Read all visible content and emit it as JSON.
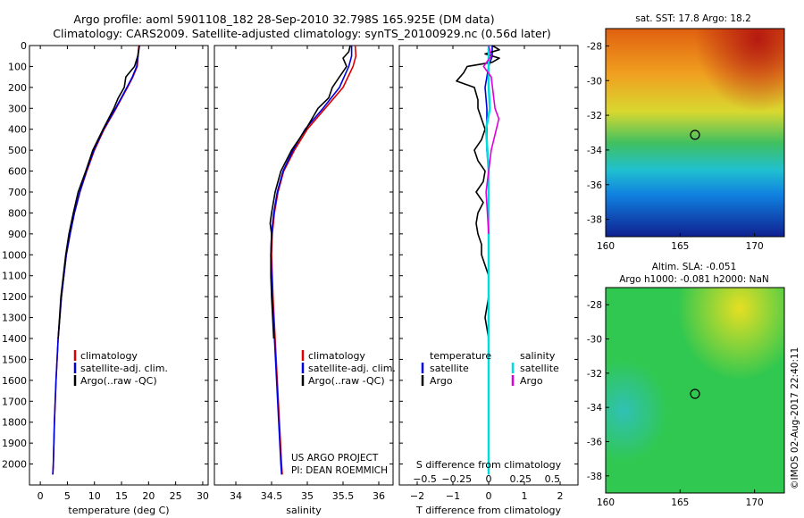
{
  "header": {
    "title_line1": "Argo profile: aoml 5901108_182 28-Sep-2010 32.798S 165.925E (DM data)",
    "title_line2": "Climatology: CARS2009. Satellite-adjusted climatology: synTS_20100929.nc (0.56d later)"
  },
  "chart_data": [
    {
      "type": "line",
      "id": "temperature",
      "xlabel": "temperature (deg C)",
      "ylabel": "",
      "xlim": [
        -2,
        31
      ],
      "ylim": [
        2100,
        0
      ],
      "xticks": [
        0,
        5,
        10,
        15,
        20,
        25,
        30
      ],
      "yticks": [
        0,
        100,
        200,
        300,
        400,
        500,
        600,
        700,
        800,
        900,
        1000,
        1100,
        1200,
        1300,
        1400,
        1500,
        1600,
        1700,
        1800,
        1900,
        2000
      ],
      "legend": [
        "climatology",
        "satellite-adj. clim.",
        "Argo(..raw -QC)"
      ],
      "series": [
        {
          "name": "climatology",
          "color": "#dd0000",
          "depth": [
            0,
            100,
            150,
            200,
            300,
            400,
            500,
            600,
            700,
            800,
            900,
            1000,
            1200,
            1400,
            1600,
            1800,
            2000,
            2050
          ],
          "values": [
            18.2,
            17.9,
            17.1,
            16.1,
            14.0,
            11.8,
            10.0,
            8.6,
            7.3,
            6.3,
            5.5,
            4.8,
            3.9,
            3.3,
            2.9,
            2.6,
            2.4,
            2.3
          ]
        },
        {
          "name": "satellite-adj. clim.",
          "color": "#0000dd",
          "depth": [
            0,
            100,
            150,
            200,
            300,
            400,
            500,
            600,
            700,
            800,
            900,
            1000,
            1200,
            1400,
            1600,
            1800,
            2000,
            2050
          ],
          "values": [
            18.3,
            17.8,
            17.0,
            16.0,
            13.9,
            11.7,
            9.9,
            8.5,
            7.3,
            6.3,
            5.5,
            4.8,
            3.9,
            3.3,
            2.9,
            2.6,
            2.4,
            2.3
          ]
        },
        {
          "name": "Argo(..raw -QC)",
          "color": "#000000",
          "depth": [
            0,
            50,
            100,
            150,
            200,
            250,
            300,
            400,
            500,
            600,
            700,
            800,
            900,
            1000,
            1200,
            1400
          ],
          "values": [
            18.3,
            18.0,
            17.4,
            15.8,
            15.5,
            14.4,
            13.6,
            11.6,
            9.7,
            8.4,
            7.0,
            6.1,
            5.3,
            4.7,
            3.8,
            3.3
          ]
        }
      ]
    },
    {
      "type": "line",
      "id": "salinity",
      "xlabel": "salinity",
      "ylabel": "",
      "xlim": [
        33.7,
        36.2
      ],
      "ylim": [
        2100,
        0
      ],
      "xticks": [
        34,
        34.5,
        35,
        35.5,
        36
      ],
      "legend": [
        "climatology",
        "satellite-adj. clim.",
        "Argo(..raw -QC)"
      ],
      "series": [
        {
          "name": "climatology",
          "color": "#dd0000",
          "depth": [
            0,
            50,
            100,
            200,
            300,
            400,
            500,
            600,
            700,
            800,
            900,
            1000,
            1200,
            1400,
            1600,
            1800,
            2000,
            2050
          ],
          "values": [
            35.67,
            35.68,
            35.64,
            35.5,
            35.25,
            35.0,
            34.82,
            34.67,
            34.59,
            34.54,
            34.51,
            34.5,
            34.52,
            34.55,
            34.58,
            34.61,
            34.64,
            34.65
          ]
        },
        {
          "name": "satellite-adj. clim.",
          "color": "#0000dd",
          "depth": [
            0,
            50,
            100,
            200,
            300,
            400,
            500,
            600,
            700,
            800,
            900,
            1000,
            1200,
            1400,
            1600,
            1800,
            2000,
            2050
          ],
          "values": [
            35.62,
            35.62,
            35.58,
            35.45,
            35.22,
            34.97,
            34.8,
            34.66,
            34.58,
            34.53,
            34.5,
            34.49,
            34.51,
            34.54,
            34.57,
            34.6,
            34.63,
            34.64
          ]
        },
        {
          "name": "Argo(..raw -QC)",
          "color": "#000000",
          "depth": [
            0,
            30,
            60,
            100,
            150,
            200,
            250,
            300,
            400,
            500,
            600,
            700,
            800,
            850,
            900,
            1000,
            1100,
            1200,
            1400
          ],
          "values": [
            35.6,
            35.58,
            35.5,
            35.55,
            35.45,
            35.35,
            35.3,
            35.15,
            34.98,
            34.78,
            34.63,
            34.55,
            34.5,
            34.48,
            34.5,
            34.49,
            34.49,
            34.5,
            34.53
          ]
        }
      ]
    },
    {
      "type": "line",
      "id": "difference",
      "xlabel": "T difference from climatology",
      "xlabel_top": "S difference from climatology",
      "xlim": [
        -2.5,
        2.5
      ],
      "ylim": [
        2100,
        0
      ],
      "xticks": [
        -2,
        -1,
        0,
        1,
        2
      ],
      "xtick_labels": [
        "−2",
        "−1",
        "0",
        "1",
        "2"
      ],
      "xticks_s": [
        -0.5,
        -0.25,
        0,
        0.25,
        0.5
      ],
      "xtick_labels_s": [
        "−0.5",
        "−0.25",
        "0",
        "0.25",
        "0.5"
      ],
      "legend_headers": [
        "temperature",
        "salinity"
      ],
      "legend": [
        "satellite",
        "Argo",
        "satellite",
        "Argo"
      ],
      "series": [
        {
          "name": "satellite",
          "color": "#0000dd",
          "depth": [
            0,
            50,
            100,
            200,
            300,
            400,
            500,
            600,
            800,
            1000,
            1200,
            1400,
            1600,
            1800,
            2000,
            2050
          ],
          "values": [
            0.1,
            0.1,
            0.0,
            -0.1,
            -0.05,
            -0.05,
            -0.05,
            0,
            0,
            0,
            0,
            0,
            0,
            0,
            0,
            0
          ]
        },
        {
          "name": "Argo",
          "color": "#000000",
          "depth": [
            0,
            20,
            40,
            60,
            80,
            100,
            130,
            170,
            200,
            260,
            300,
            350,
            400,
            450,
            500,
            550,
            600,
            650,
            700,
            750,
            800,
            850,
            900,
            950,
            1000,
            1050,
            1100,
            1150,
            1200,
            1300,
            1400
          ],
          "values": [
            0.1,
            0.3,
            -0.1,
            0.3,
            0.1,
            -0.6,
            -0.7,
            -0.9,
            -0.4,
            -0.3,
            -0.3,
            -0.2,
            -0.1,
            -0.2,
            -0.4,
            -0.3,
            -0.1,
            -0.15,
            -0.35,
            -0.15,
            -0.3,
            -0.35,
            -0.3,
            -0.2,
            -0.2,
            -0.1,
            0,
            0,
            0,
            -0.1,
            0
          ]
        },
        {
          "name": "satellite",
          "color": "#00dddd",
          "depth": [
            0,
            100,
            200,
            300,
            400,
            600,
            800,
            1000,
            1200,
            1500,
            1800,
            2050
          ],
          "values": [
            0.0,
            0.0,
            0.0,
            0.01,
            -0.02,
            0.0,
            0.0,
            0.0,
            0.0,
            0.0,
            0.0,
            0.0
          ]
        },
        {
          "name": "Argo",
          "color": "#dd00dd",
          "depth": [
            0,
            50,
            100,
            150,
            200,
            300,
            350,
            400,
            500,
            600,
            700,
            800,
            900
          ],
          "values": [
            0.0,
            0.02,
            -0.04,
            0.02,
            0.03,
            0.05,
            0.08,
            0.06,
            0.02,
            0.0,
            -0.02,
            -0.01,
            0.0
          ]
        }
      ]
    }
  ],
  "legends": {
    "temp": [
      "climatology",
      "satellite-adj. clim.",
      "Argo(..raw -QC)"
    ],
    "sal": [
      "climatology",
      "satellite-adj. clim.",
      "Argo(..raw -QC)"
    ],
    "diff_temp_header": "temperature",
    "diff_sal_header": "salinity",
    "diff_temp": [
      "satellite",
      "Argo"
    ],
    "diff_sal": [
      "satellite",
      "Argo"
    ]
  },
  "project_note": [
    "US ARGO PROJECT",
    "PI: DEAN ROEMMICH"
  ],
  "maps": {
    "sst": {
      "title": "sat. SST: 17.8 Argo: 18.2",
      "xticks": [
        "160",
        "165",
        "170"
      ],
      "yticks": [
        "-28",
        "-30",
        "-32",
        "-34",
        "-36",
        "-38"
      ]
    },
    "sla": {
      "title_line1": "Altim. SLA: -0.051",
      "title_line2": "Argo h1000: -0.081 h2000: NaN",
      "xticks": [
        "160",
        "165",
        "170"
      ],
      "yticks": [
        "-28",
        "-30",
        "-32",
        "-34",
        "-36",
        "-38"
      ]
    }
  },
  "credit": "©IMOS 02-Aug-2017 22:40:11",
  "colors": {
    "red": "#dd0000",
    "blue": "#0000dd",
    "black": "#000000",
    "cyan": "#00dddd",
    "magenta": "#dd00dd"
  }
}
